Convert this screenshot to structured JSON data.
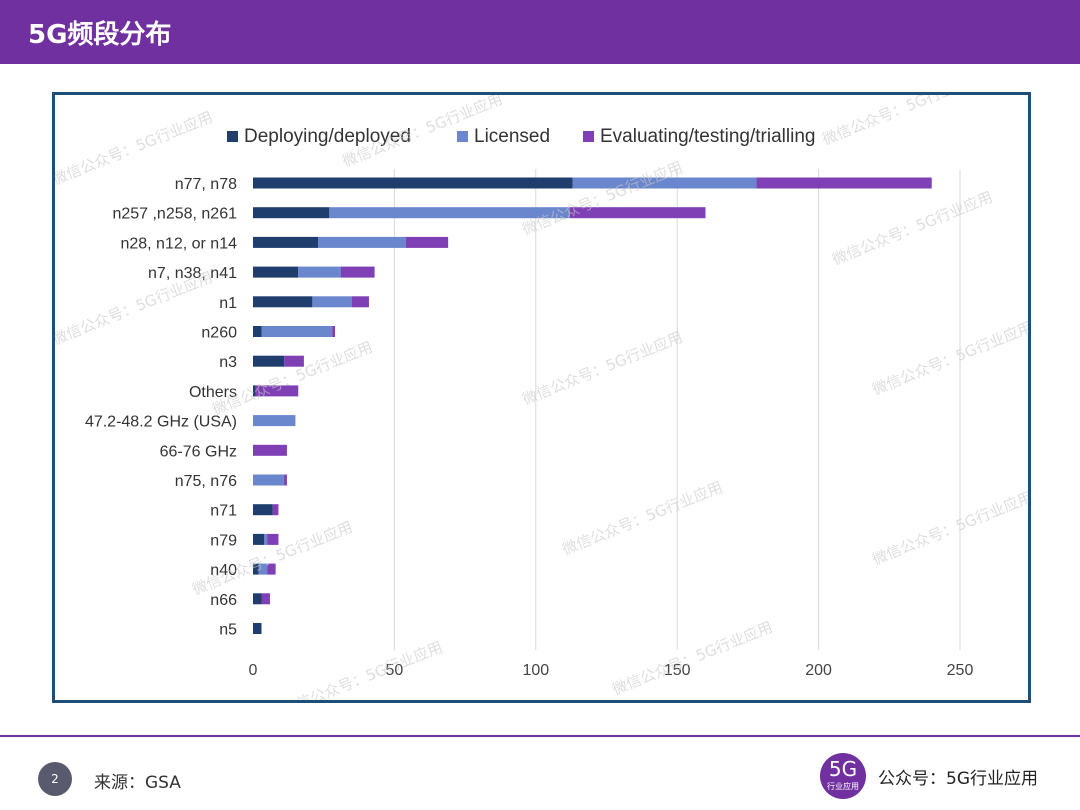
{
  "header": {
    "title": "5G频段分布"
  },
  "footer": {
    "page_number": "2",
    "source": "来源：GSA",
    "logo_big": "5G",
    "logo_small": "行业应用",
    "account": "公众号：5G行业应用"
  },
  "watermark_text": "微信公众号：5G行业应用",
  "colors": {
    "deploying": "#1f3e6e",
    "licensed": "#6a86cc",
    "evaluating": "#7f3fb5",
    "header": "#7030a0",
    "frame": "#1f4e79"
  },
  "chart_data": {
    "type": "bar",
    "orientation": "horizontal",
    "stacked": true,
    "title": "",
    "xlabel": "",
    "ylabel": "",
    "xlim": [
      0,
      250
    ],
    "xticks": [
      "0",
      "50",
      "100",
      "150",
      "200",
      "250"
    ],
    "grid": true,
    "legend": "top",
    "categories": [
      "n77, n78",
      "n257 ,n258, n261",
      "n28, n12, or n14",
      "n7, n38, n41",
      "n1",
      "n260",
      "n3",
      "Others",
      "47.2-48.2 GHz (USA)",
      "66-76 GHz",
      "n75, n76",
      "n71",
      "n79",
      "n40",
      "n66",
      "n5"
    ],
    "series": [
      {
        "name": "Deploying/deployed",
        "values": [
          113,
          27,
          23,
          16,
          21,
          3,
          11,
          1,
          0,
          0,
          0,
          7,
          4,
          2,
          3,
          3
        ]
      },
      {
        "name": "Licensed",
        "values": [
          65,
          85,
          31,
          15,
          14,
          25,
          0,
          0,
          15,
          0,
          11,
          0,
          1,
          3,
          0,
          0
        ]
      },
      {
        "name": "Evaluating/testing/trialling",
        "values": [
          62,
          48,
          15,
          12,
          6,
          1,
          7,
          15,
          0,
          12,
          1,
          2,
          4,
          3,
          3,
          0
        ]
      }
    ]
  }
}
